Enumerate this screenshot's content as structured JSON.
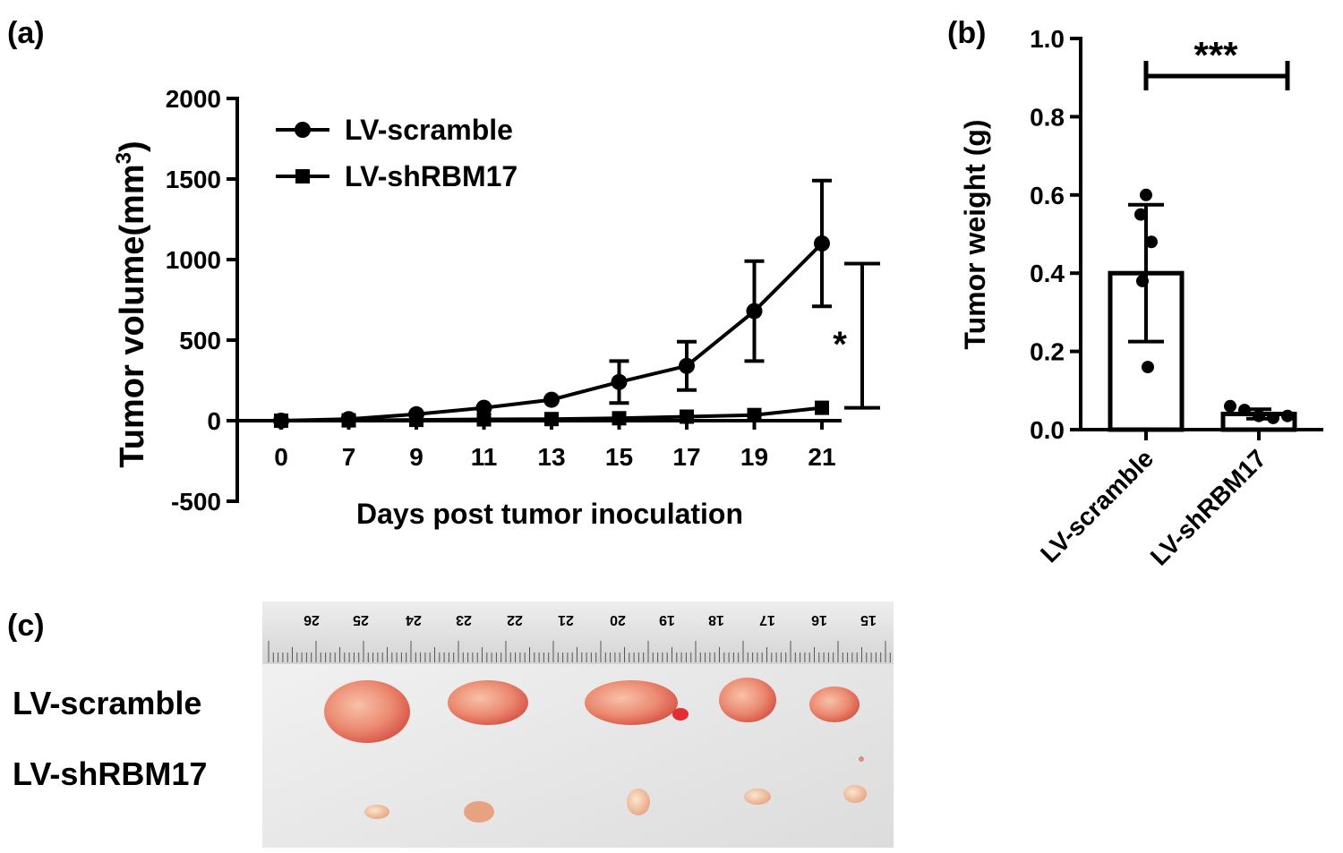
{
  "panels": {
    "a_label": "(a)",
    "b_label": "(b)",
    "c_label": "(c)"
  },
  "chart_data": [
    {
      "type": "line",
      "panel": "(a)",
      "xlabel": "Days post tumor inoculation",
      "ylabel": "Tumor volume(mm",
      "ylabel_sup": "3",
      "ylabel_close": ")",
      "x": [
        "0",
        "7",
        "9",
        "11",
        "13",
        "15",
        "17",
        "19",
        "21"
      ],
      "ylim": [
        -500,
        2000
      ],
      "yticks": [
        -500,
        0,
        500,
        1000,
        1500,
        2000
      ],
      "series": [
        {
          "name": "LV-scramble",
          "marker": "circle",
          "values": [
            0,
            10,
            40,
            80,
            130,
            240,
            340,
            680,
            1100
          ],
          "err": [
            0,
            0,
            0,
            0,
            0,
            130,
            150,
            310,
            390
          ]
        },
        {
          "name": "LV-shRBM17",
          "marker": "square",
          "values": [
            0,
            2,
            5,
            8,
            10,
            15,
            25,
            35,
            80
          ],
          "err": [
            0,
            0,
            0,
            0,
            0,
            0,
            0,
            0,
            0
          ]
        }
      ],
      "significance": "*",
      "significance_bracket": [
        80,
        975
      ],
      "legend_position": "top-left"
    },
    {
      "type": "bar",
      "panel": "(b)",
      "ylabel": "Tumor weight (g)",
      "categories": [
        "LV-scramble",
        "LV-shRBM17"
      ],
      "values": [
        0.4,
        0.04
      ],
      "sd": [
        0.175,
        0.012
      ],
      "points": [
        [
          0.6,
          0.55,
          0.48,
          0.38,
          0.16
        ],
        [
          0.06,
          0.05,
          0.035,
          0.03,
          0.035
        ]
      ],
      "ylim": [
        0,
        1.0
      ],
      "yticks": [
        "0.0",
        "0.2",
        "0.4",
        "0.6",
        "0.8",
        "1.0"
      ],
      "significance": "***"
    }
  ],
  "photo": {
    "row_labels": [
      "LV-scramble",
      "LV-shRBM17"
    ],
    "ruler_numbers": [
      "26",
      "25",
      "24",
      "23",
      "22",
      "21",
      "20",
      "19",
      "18",
      "17",
      "16",
      "15"
    ]
  }
}
